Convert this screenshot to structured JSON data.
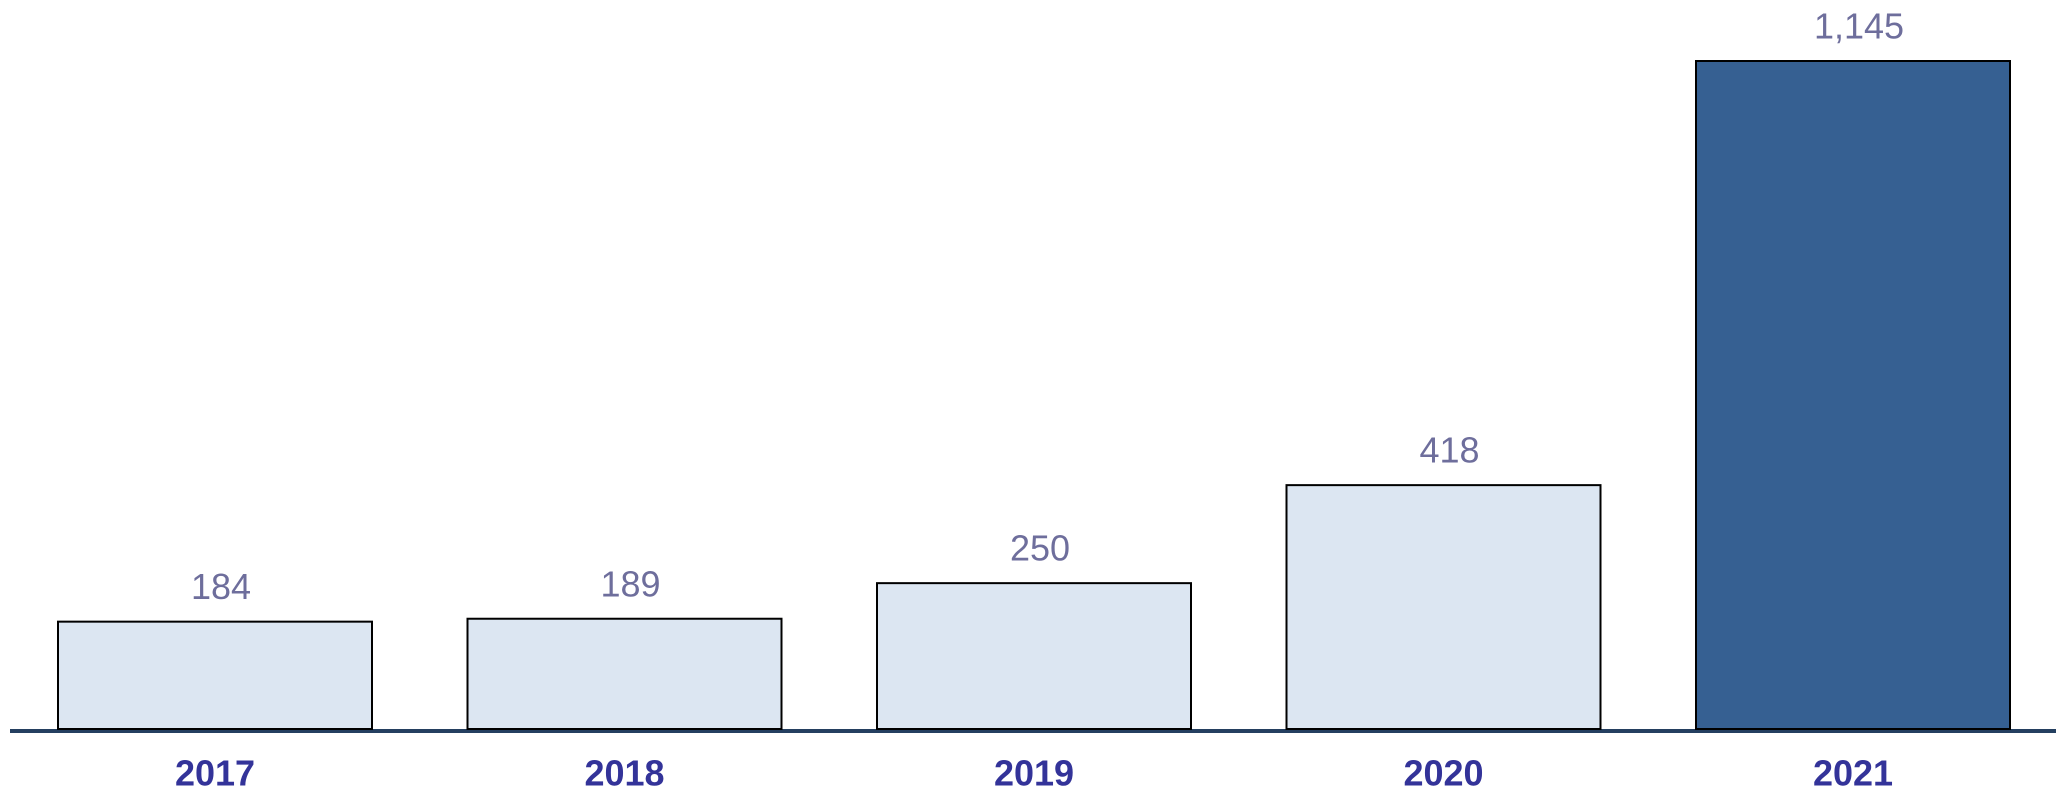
{
  "chart_data": {
    "type": "bar",
    "categories": [
      "2017",
      "2018",
      "2019",
      "2020",
      "2021"
    ],
    "values": [
      184,
      189,
      250,
      418,
      1145
    ],
    "value_labels": [
      "184",
      "189",
      "250",
      "418",
      "1,145"
    ],
    "colors": [
      "#dce6f2",
      "#dce6f2",
      "#dce6f2",
      "#dce6f2",
      "#366092"
    ]
  }
}
